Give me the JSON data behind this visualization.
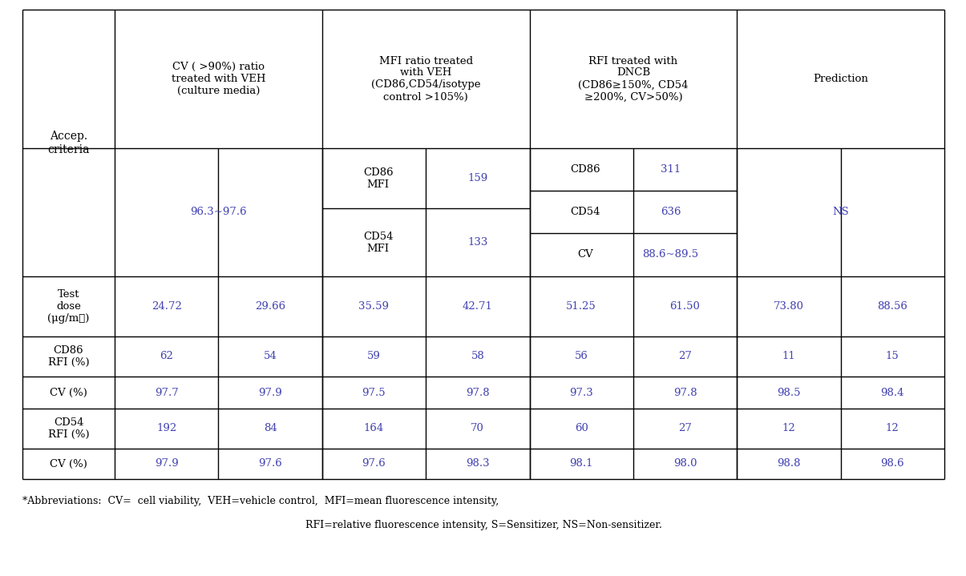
{
  "bg_color": "#ffffff",
  "text_color_black": "#000000",
  "text_color_blue": "#4040b0",
  "header_col1": "Accep.\ncriteria",
  "header_col2": "CV ( >90%) ratio\ntreated with VEH\n(culture media)",
  "header_col3": "MFI ratio treated\nwith VEH\n(CD86,CD54/isotype\ncontrol >105%)",
  "header_col4": "RFI treated with\nDNCB\n(CD86≥150%, CD54\n≥200%, CV>50%)",
  "header_col5": "Prediction",
  "accep_cv": "96.3~97.6",
  "accep_cd86_label": "CD86\nMFI",
  "accep_cd86_val": "159",
  "accep_cd54_label": "CD54\nMFI",
  "accep_cd54_val": "133",
  "accep_dncb_cd86_label": "CD86",
  "accep_dncb_cd86_val": "311",
  "accep_dncb_cd54_label": "CD54",
  "accep_dncb_cd54_val": "636",
  "accep_dncb_cv_label": "CV",
  "accep_dncb_cv_val": "88.6~89.5",
  "accep_prediction": "NS",
  "row_test_label": "Test\ndose\n(μg/mℓ)",
  "row_test_vals": [
    "24.72",
    "29.66",
    "35.59",
    "42.71",
    "51.25",
    "61.50",
    "73.80",
    "88.56"
  ],
  "row_cd86_label": "CD86\nRFI (%)",
  "row_cd86_vals": [
    "62",
    "54",
    "59",
    "58",
    "56",
    "27",
    "11",
    "15"
  ],
  "row_cv1_label": "CV (%)",
  "row_cv1_vals": [
    "97.7",
    "97.9",
    "97.5",
    "97.8",
    "97.3",
    "97.8",
    "98.5",
    "98.4"
  ],
  "row_cd54_label": "CD54\nRFI (%)",
  "row_cd54_vals": [
    "192",
    "84",
    "164",
    "70",
    "60",
    "27",
    "12",
    "12"
  ],
  "row_cv2_label": "CV (%)",
  "row_cv2_vals": [
    "97.9",
    "97.6",
    "97.6",
    "98.3",
    "98.1",
    "98.0",
    "98.8",
    "98.6"
  ],
  "footnote1": "*Abbreviations:  CV=  cell viability,  VEH=vehicle control,  MFI=mean fluorescence intensity,",
  "footnote2": "RFI=relative fluorescence intensity, S=Sensitizer, NS=Non-sensitizer."
}
